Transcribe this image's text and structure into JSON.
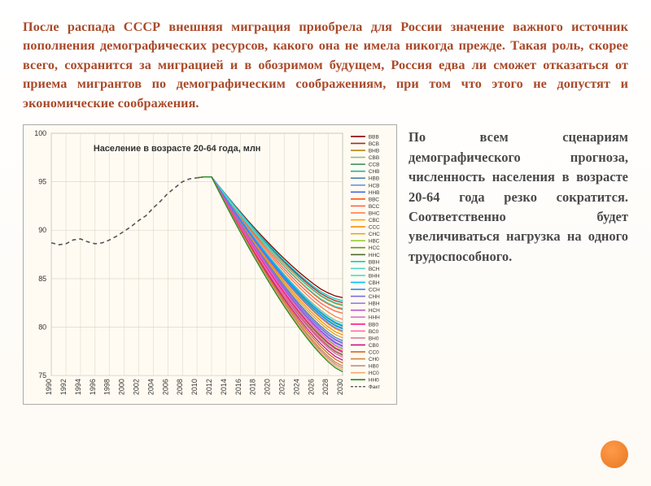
{
  "main_paragraph": "После распада СССР внешняя миграция приобрела для России значение важного источник пополнения демографических ресурсов, какого она не имела никогда прежде. Такая роль, скорее всего, сохранится за миграцией и в обозримом будущем, Россия едва ли сможет отказаться от приема мигрантов по демографическим соображениям, при том что этого не допустят и экономические соображения.",
  "side_paragraph": "По всем сценариям демографического прогноза, численность населения в возрасте 20-64 года резко сократится. Соответственно будет увеличиваться нагрузка на одного трудоспособного.",
  "chart": {
    "title": "Население в возрасте 20-64 года, млн",
    "ylim": [
      75,
      100
    ],
    "ytick_step": 5,
    "x_labels": [
      "1990",
      "1992",
      "1994",
      "1996",
      "1998",
      "2000",
      "2002",
      "2004",
      "2006",
      "2008",
      "2010",
      "2012",
      "2014",
      "2016",
      "2018",
      "2020",
      "2022",
      "2024",
      "2026",
      "2028",
      "2030"
    ],
    "plot_bg": "#fffbf2",
    "grid_color": "#d8d2c4",
    "historical_color": "#555555",
    "legend_items": [
      {
        "label": "ВВВ",
        "color": "#8b0000"
      },
      {
        "label": "ВСВ",
        "color": "#a52a2a"
      },
      {
        "label": "ВНВ",
        "color": "#b8860b"
      },
      {
        "label": "СВВ",
        "color": "#8fbc8f"
      },
      {
        "label": "ССВ",
        "color": "#2e8b57"
      },
      {
        "label": "СНВ",
        "color": "#20b2aa"
      },
      {
        "label": "НВВ",
        "color": "#4682b4"
      },
      {
        "label": "НСВ",
        "color": "#6495ed"
      },
      {
        "label": "ННВ",
        "color": "#4169e1"
      },
      {
        "label": "ВВС",
        "color": "#ff4500"
      },
      {
        "label": "ВСС",
        "color": "#ff6347"
      },
      {
        "label": "ВНС",
        "color": "#ff7f50"
      },
      {
        "label": "СВС",
        "color": "#ffa500"
      },
      {
        "label": "ССС",
        "color": "#ff8c00"
      },
      {
        "label": "СНС",
        "color": "#daa520"
      },
      {
        "label": "НВС",
        "color": "#9acd32"
      },
      {
        "label": "НСС",
        "color": "#6b8e23"
      },
      {
        "label": "ННС",
        "color": "#556b2f"
      },
      {
        "label": "ВВН",
        "color": "#00ced1"
      },
      {
        "label": "ВСН",
        "color": "#48d1cc"
      },
      {
        "label": "ВНН",
        "color": "#40e0d0"
      },
      {
        "label": "СВН",
        "color": "#00bfff"
      },
      {
        "label": "ССН",
        "color": "#1e90ff"
      },
      {
        "label": "СНН",
        "color": "#7b68ee"
      },
      {
        "label": "НВН",
        "color": "#9370db"
      },
      {
        "label": "НСН",
        "color": "#ba55d3"
      },
      {
        "label": "ННН",
        "color": "#da70d6"
      },
      {
        "label": "ВВ0",
        "color": "#ff1493"
      },
      {
        "label": "ВС0",
        "color": "#ff69b4"
      },
      {
        "label": "ВН0",
        "color": "#db7093"
      },
      {
        "label": "СВ0",
        "color": "#c71585"
      },
      {
        "label": "СС0",
        "color": "#d2691e"
      },
      {
        "label": "СН0",
        "color": "#cd853f"
      },
      {
        "label": "НВ0",
        "color": "#bc8f8f"
      },
      {
        "label": "НС0",
        "color": "#f4a460"
      },
      {
        "label": "НН0",
        "color": "#228b22"
      },
      {
        "label": "Факт",
        "color": "#555555",
        "dash": true
      }
    ],
    "historical": {
      "x": [
        1990,
        1991,
        1992,
        1993,
        1994,
        1995,
        1996,
        1997,
        1998,
        1999,
        2000,
        2001,
        2002,
        2003,
        2004,
        2005,
        2006,
        2007,
        2008,
        2009,
        2010
      ],
      "y": [
        88.7,
        88.5,
        88.6,
        89.0,
        89.1,
        88.8,
        88.6,
        88.7,
        89.0,
        89.4,
        89.9,
        90.4,
        91.0,
        91.5,
        92.3,
        93.0,
        93.8,
        94.4,
        95.0,
        95.3,
        95.4
      ]
    },
    "scenario_endpoints": [
      {
        "color": "#8b0000",
        "end2030": 82.8
      },
      {
        "color": "#a52a2a",
        "end2030": 82.3
      },
      {
        "color": "#b8860b",
        "end2030": 82.0
      },
      {
        "color": "#ff4500",
        "end2030": 81.6
      },
      {
        "color": "#ff6347",
        "end2030": 81.2
      },
      {
        "color": "#ff7f50",
        "end2030": 80.8
      },
      {
        "color": "#8fbc8f",
        "end2030": 80.4
      },
      {
        "color": "#2e8b57",
        "end2030": 80.1
      },
      {
        "color": "#20b2aa",
        "end2030": 79.8
      },
      {
        "color": "#ffa500",
        "end2030": 79.5
      },
      {
        "color": "#ff8c00",
        "end2030": 79.2
      },
      {
        "color": "#daa520",
        "end2030": 78.9
      },
      {
        "color": "#4682b4",
        "end2030": 78.6
      },
      {
        "color": "#6495ed",
        "end2030": 78.3
      },
      {
        "color": "#4169e1",
        "end2030": 78.0
      },
      {
        "color": "#9acd32",
        "end2030": 77.7
      },
      {
        "color": "#6b8e23",
        "end2030": 77.4
      },
      {
        "color": "#556b2f",
        "end2030": 77.1
      },
      {
        "color": "#00ced1",
        "end2030": 82.5
      },
      {
        "color": "#48d1cc",
        "end2030": 82.1
      },
      {
        "color": "#40e0d0",
        "end2030": 81.7
      },
      {
        "color": "#00bfff",
        "end2030": 80.2
      },
      {
        "color": "#1e90ff",
        "end2030": 79.9
      },
      {
        "color": "#7b68ee",
        "end2030": 79.6
      },
      {
        "color": "#9370db",
        "end2030": 78.4
      },
      {
        "color": "#ba55d3",
        "end2030": 78.1
      },
      {
        "color": "#da70d6",
        "end2030": 77.8
      },
      {
        "color": "#ff1493",
        "end2030": 77.5
      },
      {
        "color": "#ff69b4",
        "end2030": 77.2
      },
      {
        "color": "#db7093",
        "end2030": 76.9
      },
      {
        "color": "#c71585",
        "end2030": 76.6
      },
      {
        "color": "#d2691e",
        "end2030": 76.3
      },
      {
        "color": "#cd853f",
        "end2030": 76.0
      },
      {
        "color": "#bc8f8f",
        "end2030": 75.8
      },
      {
        "color": "#f4a460",
        "end2030": 75.6
      },
      {
        "color": "#228b22",
        "end2030": 75.4
      }
    ]
  }
}
